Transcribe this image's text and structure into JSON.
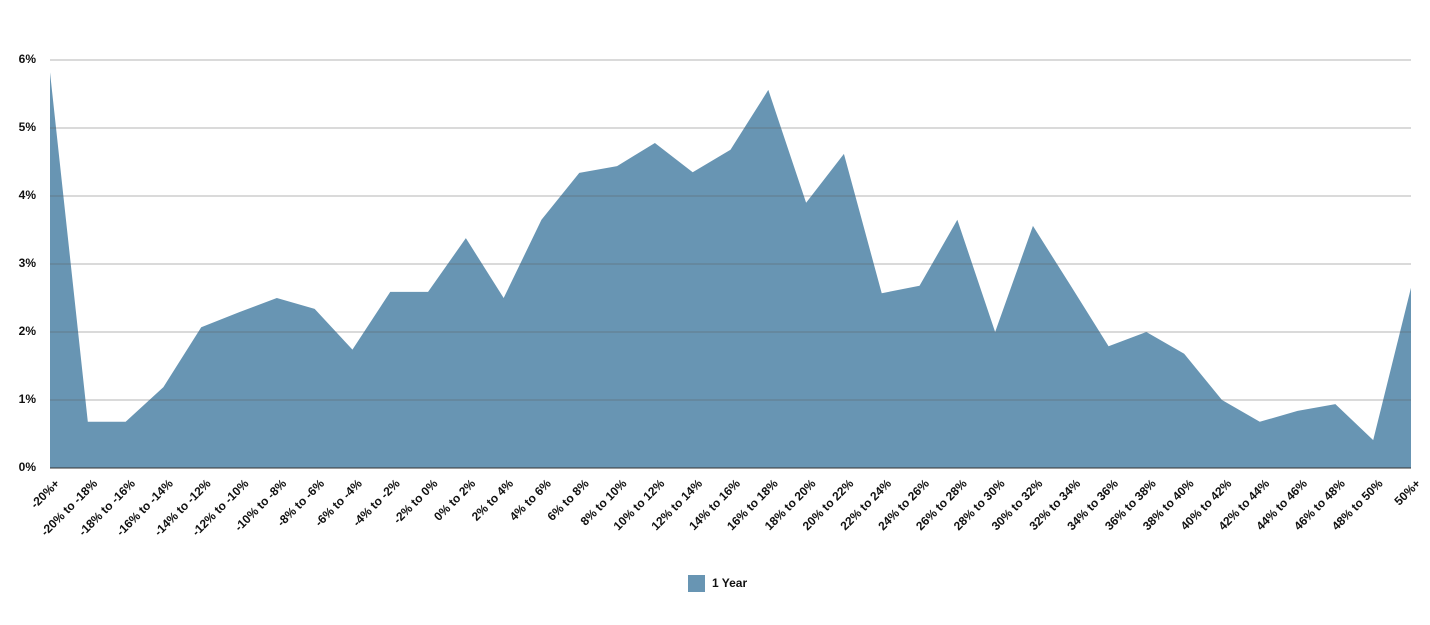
{
  "chart_data": {
    "type": "area",
    "categories": [
      "-20%+",
      "-20% to -18%",
      "-18% to -16%",
      "-16% to -14%",
      "-14% to -12%",
      "-12% to -10%",
      "-10% to -8%",
      "-8% to -6%",
      "-6% to -4%",
      "-4% to -2%",
      "-2% to 0%",
      "0% to 2%",
      "2% to 4%",
      "4% to 6%",
      "6% to 8%",
      "8% to 10%",
      "10% to 12%",
      "12% to 14%",
      "14% to 16%",
      "16% to 18%",
      "18% to 20%",
      "20% to 22%",
      "22% to 24%",
      "24% to 26%",
      "26% to 28%",
      "28% to 30%",
      "30% to 32%",
      "32% to 34%",
      "34% to 36%",
      "36% to 38%",
      "38% to 40%",
      "40% to 42%",
      "42% to 44%",
      "44% to 46%",
      "46% to 48%",
      "48% to 50%",
      "50%+"
    ],
    "series": [
      {
        "name": "1 Year",
        "color": "#6895b3",
        "values": [
          5.82,
          0.68,
          0.68,
          1.19,
          2.07,
          2.29,
          2.5,
          2.34,
          1.74,
          2.59,
          2.59,
          3.38,
          2.5,
          3.65,
          4.34,
          4.44,
          4.78,
          4.35,
          4.68,
          5.56,
          3.9,
          4.62,
          2.57,
          2.68,
          3.65,
          2.0,
          3.56,
          2.68,
          1.79,
          2.0,
          1.68,
          1.0,
          0.68,
          0.84,
          0.94,
          0.41,
          2.65
        ]
      }
    ],
    "ylim": [
      0,
      6
    ],
    "yticks": [
      {
        "value": 0,
        "label": "0%"
      },
      {
        "value": 1,
        "label": "1%"
      },
      {
        "value": 2,
        "label": "2%"
      },
      {
        "value": 3,
        "label": "3%"
      },
      {
        "value": 4,
        "label": "4%"
      },
      {
        "value": 5,
        "label": "5%"
      },
      {
        "value": 6,
        "label": "6%"
      }
    ],
    "grid": true,
    "legend": "bottom"
  }
}
